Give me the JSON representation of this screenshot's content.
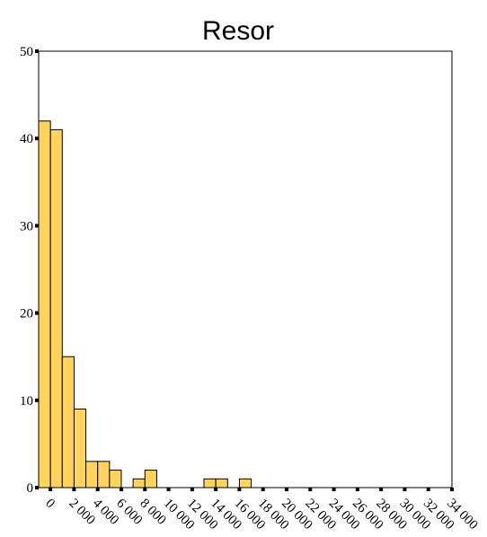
{
  "colors": {
    "bar_fill": "#ffd35c",
    "bar_stroke": "#000000",
    "axis": "#000000"
  },
  "chart_data": {
    "type": "bar",
    "title": "Resor",
    "xlabel": "",
    "ylabel": "",
    "ylim": [
      0,
      50
    ],
    "y_ticks": [
      0,
      10,
      20,
      30,
      40,
      50
    ],
    "bin_width": 1000,
    "x_range": [
      -1000,
      34000
    ],
    "x_ticks": [
      0,
      2000,
      4000,
      6000,
      8000,
      10000,
      12000,
      14000,
      16000,
      18000,
      20000,
      22000,
      24000,
      26000,
      28000,
      30000,
      32000,
      34000
    ],
    "x_tick_labels": [
      "0",
      "2 000",
      "4 000",
      "6 000",
      "8 000",
      "10 000",
      "12 000",
      "14 000",
      "16 000",
      "18 000",
      "20 000",
      "22 000",
      "24 000",
      "26 000",
      "28 000",
      "30 000",
      "32 000",
      "34 000"
    ],
    "bins": [
      {
        "center": -500,
        "count": 42
      },
      {
        "center": 500,
        "count": 41
      },
      {
        "center": 1500,
        "count": 15
      },
      {
        "center": 2500,
        "count": 9
      },
      {
        "center": 3500,
        "count": 3
      },
      {
        "center": 4500,
        "count": 3
      },
      {
        "center": 5500,
        "count": 2
      },
      {
        "center": 6500,
        "count": 0
      },
      {
        "center": 7500,
        "count": 1
      },
      {
        "center": 8500,
        "count": 2
      },
      {
        "center": 9500,
        "count": 0
      },
      {
        "center": 10500,
        "count": 0
      },
      {
        "center": 11500,
        "count": 0
      },
      {
        "center": 12500,
        "count": 0
      },
      {
        "center": 13500,
        "count": 1
      },
      {
        "center": 14500,
        "count": 1
      },
      {
        "center": 15500,
        "count": 0
      },
      {
        "center": 16500,
        "count": 1
      }
    ],
    "grid": false,
    "legend": "none"
  }
}
